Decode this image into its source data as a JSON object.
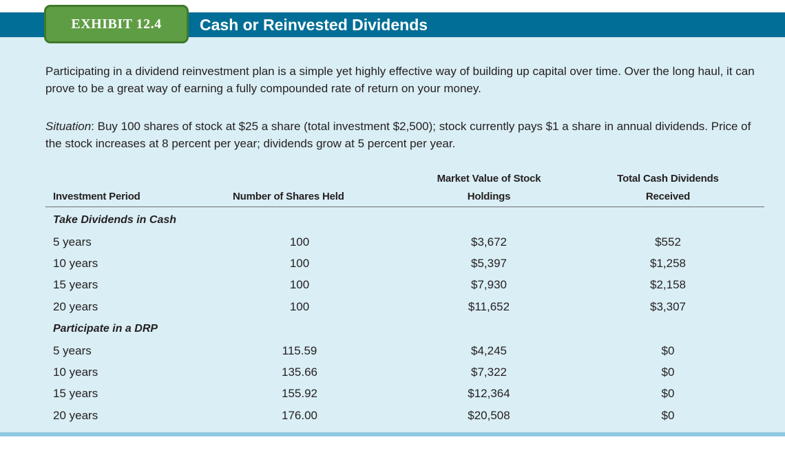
{
  "exhibit": {
    "badge": "EXHIBIT 12.4",
    "title": "Cash or Reinvested Dividends"
  },
  "intro": "Participating in a dividend reinvestment plan is a simple yet highly effective way of building up capital over time. Over the long haul, it can prove to be a great way of earning a fully compounded rate of return on your money.",
  "situation": {
    "label": "Situation",
    "text": ": Buy 100 shares of stock at $25 a share (total investment $2,500); stock currently pays $1 a share in annual dividends. Price of the stock increases at 8 percent per year; dividends grow at 5 percent per year."
  },
  "table": {
    "headers": {
      "period": "Investment Period",
      "shares": "Number of Shares Held",
      "market_value_line1": "Market Value of Stock",
      "market_value_line2": "Holdings",
      "dividends_line1": "Total Cash Dividends",
      "dividends_line2": "Received"
    },
    "sections": [
      {
        "label": "Take Dividends in Cash",
        "rows": [
          {
            "period": "5 years",
            "shares": "100",
            "market_value": "$3,672",
            "dividends": "$552"
          },
          {
            "period": "10 years",
            "shares": "100",
            "market_value": "$5,397",
            "dividends": "$1,258"
          },
          {
            "period": "15 years",
            "shares": "100",
            "market_value": "$7,930",
            "dividends": "$2,158"
          },
          {
            "period": "20 years",
            "shares": "100",
            "market_value": "$11,652",
            "dividends": "$3,307"
          }
        ]
      },
      {
        "label": "Participate in a DRP",
        "rows": [
          {
            "period": "5 years",
            "shares": "115.59",
            "market_value": "$4,245",
            "dividends": "$0"
          },
          {
            "period": "10 years",
            "shares": "135.66",
            "market_value": "$7,322",
            "dividends": "$0"
          },
          {
            "period": "15 years",
            "shares": "155.92",
            "market_value": "$12,364",
            "dividends": "$0"
          },
          {
            "period": "20 years",
            "shares": "176.00",
            "market_value": "$20,508",
            "dividends": "$0"
          }
        ]
      }
    ]
  },
  "colors": {
    "header_bar": "#006e96",
    "badge": "#5f9d45",
    "panel": "#daeef5",
    "bottom_bar": "#8fc8e3"
  }
}
